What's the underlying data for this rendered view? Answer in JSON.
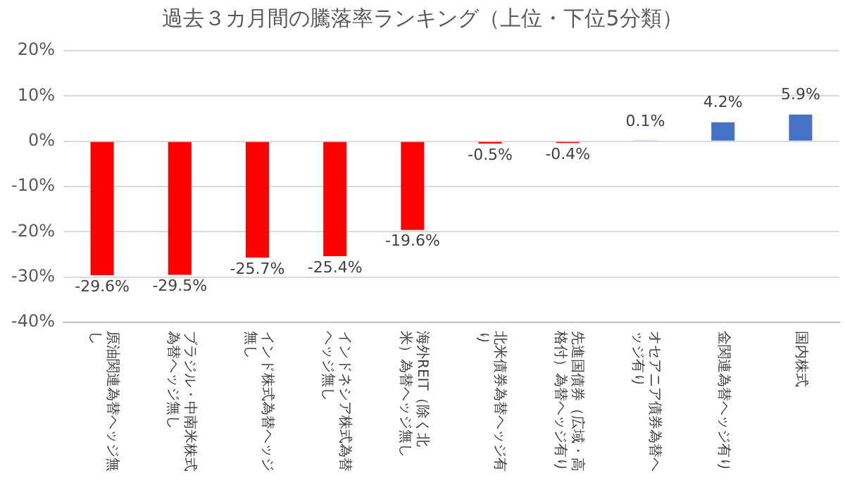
{
  "chart_data": {
    "type": "bar",
    "title": "過去３カ月間の騰落率ランキング（上位・下位5分類）",
    "categories": [
      "原油関連為替ヘッジ無し",
      "ブラジル・中南米株式為替ヘッジ無し",
      "インド株式為替ヘッジ無し",
      "インドネシア株式為替ヘッジ無し",
      "海外REIT（除く北米）為替ヘッジ無し",
      "北米債券為替ヘッジ有り",
      "先進国債券（広域・高格付）為替ヘッジ有り",
      "オセアニア債券為替ヘッジ有り",
      "金関連為替ヘッジ有り",
      "国内株式"
    ],
    "values": [
      -29.6,
      -29.5,
      -25.7,
      -25.4,
      -19.6,
      -0.5,
      -0.4,
      0.1,
      4.2,
      5.9
    ],
    "colors": [
      "#ff0000",
      "#ff0000",
      "#ff0000",
      "#ff0000",
      "#ff0000",
      "#ff0000",
      "#ff0000",
      "#4472c4",
      "#4472c4",
      "#4472c4"
    ],
    "value_labels": [
      "-29.6%",
      "-29.5%",
      "-25.7%",
      "-25.4%",
      "-19.6%",
      "-0.5%",
      "-0.4%",
      "0.1%",
      "4.2%",
      "5.9%"
    ],
    "ylim": [
      -40,
      20
    ],
    "yticks": [
      {
        "value": -40,
        "label": "-40%"
      },
      {
        "value": -30,
        "label": "-30%"
      },
      {
        "value": -20,
        "label": "-20%"
      },
      {
        "value": -10,
        "label": "-10%"
      },
      {
        "value": 0,
        "label": "0%"
      },
      {
        "value": 10,
        "label": "10%"
      },
      {
        "value": 20,
        "label": "20%"
      }
    ],
    "grid": "y",
    "legend": false
  }
}
